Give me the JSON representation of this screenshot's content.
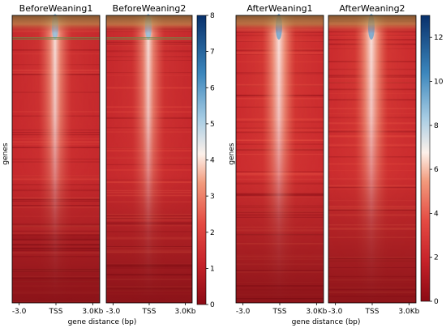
{
  "chart_data": {
    "type": "heatmap",
    "y_label": "genes",
    "x_label": "gene distance (bp)",
    "x_ticks": [
      "-3.0",
      "TSS",
      "3.0Kb"
    ],
    "panels": [
      {
        "title": "BeforeWeaning1",
        "group": "before"
      },
      {
        "title": "BeforeWeaning2",
        "group": "before"
      },
      {
        "title": "AfterWeaning1",
        "group": "after"
      },
      {
        "title": "AfterWeaning2",
        "group": "after"
      }
    ],
    "colorbars": [
      {
        "group": "before",
        "range": [
          0,
          8
        ],
        "ticks": [
          "0",
          "1",
          "2",
          "3",
          "4",
          "5",
          "6",
          "7",
          "8"
        ]
      },
      {
        "group": "after",
        "range": [
          0,
          13
        ],
        "ticks": [
          "0",
          "2",
          "4",
          "6",
          "8",
          "10",
          "12"
        ]
      }
    ],
    "colormap": [
      "#8b0a14",
      "#c62229",
      "#e44a42",
      "#f29a7c",
      "#fdf1ea",
      "#a8cde4",
      "#3b86bc",
      "#08306b"
    ]
  }
}
